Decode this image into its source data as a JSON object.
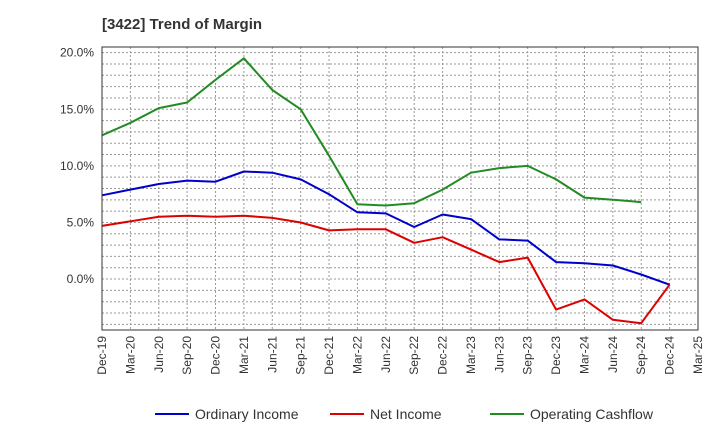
{
  "chart_data": {
    "type": "line",
    "title": "[3422]  Trend of Margin",
    "xlabel": "",
    "ylabel": "",
    "x": [
      "Dec-19",
      "Mar-20",
      "Jun-20",
      "Sep-20",
      "Dec-20",
      "Mar-21",
      "Jun-21",
      "Sep-21",
      "Dec-21",
      "Mar-22",
      "Jun-22",
      "Sep-22",
      "Dec-22",
      "Mar-23",
      "Jun-23",
      "Sep-23",
      "Dec-23",
      "Mar-24",
      "Jun-24",
      "Sep-24",
      "Dec-24",
      "Mar-25"
    ],
    "ylim": [
      -4.5,
      20.5
    ],
    "yticks": [
      0,
      5,
      10,
      15,
      20
    ],
    "ytick_labels": [
      "0.0%",
      "5.0%",
      "10.0%",
      "15.0%",
      "20.0%"
    ],
    "grid": true,
    "legend_position": "bottom",
    "series": [
      {
        "name": "Ordinary Income",
        "color": "#0000cc",
        "values": [
          7.4,
          7.9,
          8.4,
          8.7,
          8.6,
          9.5,
          9.4,
          8.8,
          7.5,
          5.9,
          5.8,
          4.6,
          5.7,
          5.3,
          3.5,
          3.4,
          1.5,
          1.4,
          1.2,
          0.4,
          -0.5,
          null
        ]
      },
      {
        "name": "Net Income",
        "color": "#dd0000",
        "values": [
          4.7,
          5.1,
          5.5,
          5.6,
          5.5,
          5.6,
          5.4,
          5.0,
          4.3,
          4.4,
          4.4,
          3.2,
          3.7,
          2.6,
          1.5,
          1.9,
          -2.7,
          -1.8,
          -3.6,
          -3.9,
          -0.5,
          null
        ]
      },
      {
        "name": "Operating Cashflow",
        "color": "#228b22",
        "values": [
          12.7,
          13.8,
          15.1,
          15.6,
          17.6,
          19.5,
          16.7,
          15.0,
          10.9,
          6.6,
          6.5,
          6.7,
          7.9,
          9.4,
          9.8,
          10.0,
          8.8,
          7.2,
          7.0,
          6.8,
          null,
          null
        ]
      }
    ]
  }
}
